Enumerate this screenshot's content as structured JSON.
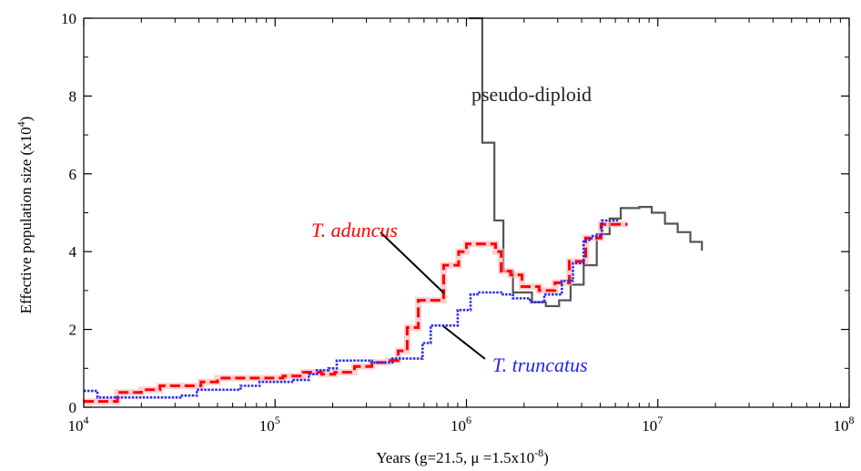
{
  "chart_data": {
    "type": "line",
    "title": "",
    "xlabel": {
      "prefix": "Years (g=21.5, ",
      "mu": "μ",
      "mid": " =1.5x10",
      "sup": "-8",
      "suffix": ")"
    },
    "ylabel": {
      "prefix": "Effective population size (x10",
      "sup": "4",
      "suffix": ")"
    },
    "x_scale": "log",
    "xlim": [
      10000,
      100000000
    ],
    "ylim": [
      0,
      10
    ],
    "x_ticks": [
      {
        "value": 10000,
        "base": "10",
        "exp": "4"
      },
      {
        "value": 100000,
        "base": "10",
        "exp": "5"
      },
      {
        "value": 1000000,
        "base": "10",
        "exp": "6"
      },
      {
        "value": 10000000,
        "base": "10",
        "exp": "7"
      },
      {
        "value": 100000000,
        "base": "10",
        "exp": "8"
      }
    ],
    "y_ticks": [
      {
        "value": 0,
        "label": "0"
      },
      {
        "value": 2,
        "label": "2"
      },
      {
        "value": 4,
        "label": "4"
      },
      {
        "value": 6,
        "label": "6"
      },
      {
        "value": 8,
        "label": "8"
      },
      {
        "value": 10,
        "label": "10"
      }
    ],
    "series": [
      {
        "name": "pseudo-diploid",
        "color": "#555555",
        "style": "solid",
        "step_points": [
          [
            1030000,
            10.0
          ],
          [
            1210000,
            6.8
          ],
          [
            1400000,
            4.8
          ],
          [
            1560000,
            3.5
          ],
          [
            1750000,
            2.95
          ],
          [
            2200000,
            2.7
          ],
          [
            2600000,
            2.6
          ],
          [
            3050000,
            2.75
          ],
          [
            3500000,
            3.15
          ],
          [
            4100000,
            3.65
          ],
          [
            4800000,
            4.45
          ],
          [
            5600000,
            4.85
          ],
          [
            6400000,
            5.12
          ],
          [
            8000000,
            5.15
          ],
          [
            9300000,
            5.0
          ],
          [
            10900000,
            4.72
          ],
          [
            12700000,
            4.5
          ],
          [
            14800000,
            4.25
          ],
          [
            17000000,
            4.02
          ]
        ]
      },
      {
        "name": "T. aduncus",
        "color": "#ff0000",
        "style": "dashed",
        "step_points": [
          [
            10000,
            0.15
          ],
          [
            15000,
            0.38
          ],
          [
            20000,
            0.45
          ],
          [
            25000,
            0.55
          ],
          [
            41000,
            0.65
          ],
          [
            50000,
            0.75
          ],
          [
            110000,
            0.8
          ],
          [
            140000,
            0.9
          ],
          [
            175000,
            0.85
          ],
          [
            205000,
            0.9
          ],
          [
            260000,
            1.05
          ],
          [
            320000,
            1.15
          ],
          [
            390000,
            1.2
          ],
          [
            440000,
            1.45
          ],
          [
            490000,
            2.05
          ],
          [
            560000,
            2.75
          ],
          [
            760000,
            3.65
          ],
          [
            910000,
            4.0
          ],
          [
            1000000,
            4.2
          ],
          [
            1420000,
            4.0
          ],
          [
            1520000,
            3.5
          ],
          [
            1700000,
            3.4
          ],
          [
            1950000,
            3.1
          ],
          [
            2400000,
            3.0
          ],
          [
            2900000,
            3.2
          ],
          [
            3450000,
            3.75
          ],
          [
            4200000,
            4.35
          ],
          [
            5050000,
            4.7
          ],
          [
            6950000,
            4.7
          ]
        ]
      },
      {
        "name": "T. truncatus",
        "color": "#2a2aff",
        "style": "dotted",
        "step_points": [
          [
            10000,
            0.42
          ],
          [
            11800,
            0.25
          ],
          [
            32000,
            0.3
          ],
          [
            39000,
            0.45
          ],
          [
            66000,
            0.55
          ],
          [
            83000,
            0.65
          ],
          [
            125000,
            0.7
          ],
          [
            150000,
            0.85
          ],
          [
            165000,
            0.95
          ],
          [
            190000,
            1.0
          ],
          [
            210000,
            1.2
          ],
          [
            320000,
            1.15
          ],
          [
            410000,
            1.25
          ],
          [
            590000,
            1.65
          ],
          [
            650000,
            2.1
          ],
          [
            850000,
            2.1
          ],
          [
            900000,
            2.5
          ],
          [
            1050000,
            2.9
          ],
          [
            1140000,
            2.95
          ],
          [
            1550000,
            2.9
          ],
          [
            1750000,
            2.8
          ],
          [
            2150000,
            2.7
          ],
          [
            2550000,
            2.9
          ],
          [
            3150000,
            3.25
          ],
          [
            3600000,
            3.7
          ],
          [
            4100000,
            4.3
          ],
          [
            4500000,
            4.4
          ],
          [
            5100000,
            4.8
          ],
          [
            6200000,
            4.8
          ]
        ]
      }
    ],
    "annotations": [
      {
        "text": "pseudo-diploid",
        "italic": false,
        "color": "#222222"
      },
      {
        "text": "T. aduncus",
        "italic": true,
        "color": "#ff0000"
      },
      {
        "text": "T. truncatus",
        "italic": true,
        "color": "#2222ff"
      }
    ]
  }
}
